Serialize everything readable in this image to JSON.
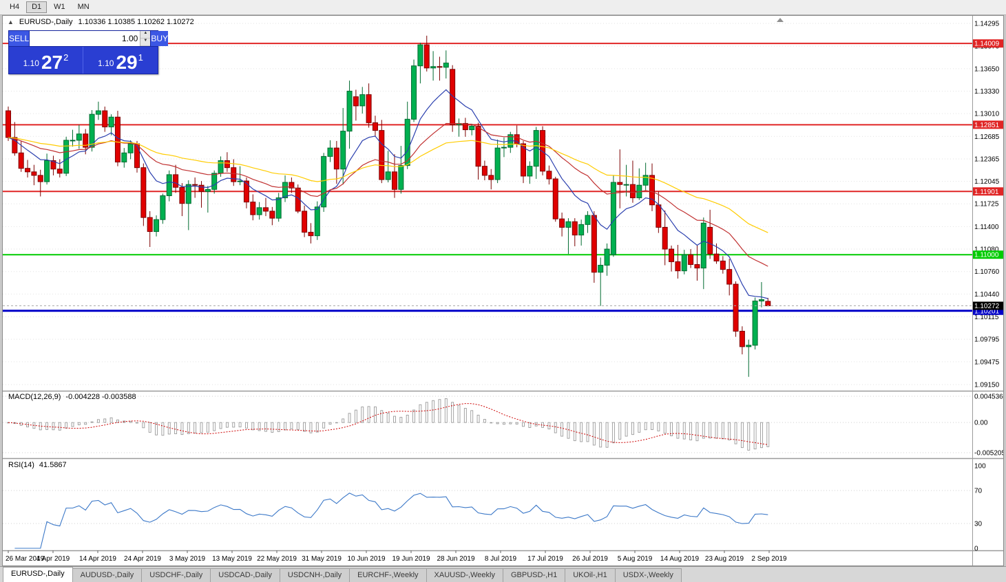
{
  "toolbar": {
    "timeframes": [
      {
        "label": "H4",
        "active": false
      },
      {
        "label": "D1",
        "active": true
      },
      {
        "label": "W1",
        "active": false
      },
      {
        "label": "MN",
        "active": false
      }
    ]
  },
  "chart_header": {
    "collapse_icon": "▲",
    "symbol": "EURUSD-,Daily",
    "ohlc_text": "1.10336 1.10385 1.10262 1.10272"
  },
  "trade_panel": {
    "sell_label": "SELL",
    "buy_label": "BUY",
    "volume": "1.00",
    "bid": {
      "small": "1.10",
      "big": "27",
      "sup": "2"
    },
    "ask": {
      "small": "1.10",
      "big": "29",
      "sup": "1"
    }
  },
  "macd_panel": {
    "label": "MACD(12,26,9)",
    "values": "-0.004228 -0.003588",
    "axis": [
      "0.004536",
      "0.00",
      "-0.005205"
    ]
  },
  "rsi_panel": {
    "label": "RSI(14)",
    "value": "41.5867",
    "axis": [
      "100",
      "70",
      "30",
      "0"
    ],
    "levels": [
      70,
      30
    ]
  },
  "colors": {
    "bull": "#00b050",
    "bull_border": "#006b30",
    "bear": "#e00000",
    "bear_border": "#7c0000",
    "grid": "#e2e2e2",
    "ma_fast": "#2a3fae",
    "ma_mid": "#c03030",
    "ma_slow": "#ffcc00",
    "macd_hist": "#9a9a9a",
    "macd_signal": "#cc0000",
    "rsi": "#3b78c8",
    "separator": "#9a9a9a",
    "bid_line": "#aaaaaa"
  },
  "chart_data": {
    "type": "candlestick",
    "symbol": "EURUSD-,Daily",
    "price_axis_ticks": [
      "1.14295",
      "1.13970",
      "1.13650",
      "1.13330",
      "1.13010",
      "1.12685",
      "1.12365",
      "1.12045",
      "1.11725",
      "1.11400",
      "1.11080",
      "1.10760",
      "1.10440",
      "1.10115",
      "1.09795",
      "1.09475",
      "1.09150"
    ],
    "price_max": 1.14295,
    "price_min": 1.0915,
    "hlines": [
      {
        "price": 1.14009,
        "label": "1.14009",
        "color": "#e02525",
        "width": 2
      },
      {
        "price": 1.12851,
        "label": "1.12851",
        "color": "#e02525",
        "width": 2
      },
      {
        "price": 1.11901,
        "label": "1.11901",
        "color": "#e02525",
        "width": 2
      },
      {
        "price": 1.11,
        "label": "1.11000",
        "color": "#00cc00",
        "width": 2
      },
      {
        "price": 1.10201,
        "label": "1.10201",
        "color": "#0000c8",
        "width": 3
      }
    ],
    "current_price": {
      "value": 1.10272,
      "label": "1.10272",
      "bg": "#000000"
    },
    "date_labels": [
      "26 Mar 2019",
      "4 Apr 2019",
      "14 Apr 2019",
      "24 Apr 2019",
      "3 May 2019",
      "13 May 2019",
      "22 May 2019",
      "31 May 2019",
      "10 Jun 2019",
      "19 Jun 2019",
      "28 Jun 2019",
      "8 Jul 2019",
      "17 Jul 2019",
      "26 Jul 2019",
      "5 Aug 2019",
      "14 Aug 2019",
      "23 Aug 2019",
      "2 Sep 2019"
    ],
    "ma": [
      {
        "type": "ema",
        "period": 10,
        "color": "#2a3fae"
      },
      {
        "type": "ema",
        "period": 25,
        "color": "#c03030"
      },
      {
        "type": "ema",
        "period": 50,
        "color": "#ffcc00"
      }
    ],
    "macd": {
      "fast": 12,
      "slow": 26,
      "signal_period": 9
    },
    "rsi": {
      "period": 14
    },
    "candles": [
      [
        1.1305,
        1.1311,
        1.1262,
        1.1267
      ],
      [
        1.1267,
        1.1289,
        1.1241,
        1.1245
      ],
      [
        1.1245,
        1.1262,
        1.1218,
        1.1223
      ],
      [
        1.1223,
        1.1235,
        1.121,
        1.1218
      ],
      [
        1.1218,
        1.1228,
        1.1199,
        1.1213
      ],
      [
        1.1213,
        1.1221,
        1.1183,
        1.1204
      ],
      [
        1.1204,
        1.1244,
        1.12,
        1.1234
      ],
      [
        1.1234,
        1.1241,
        1.1213,
        1.1222
      ],
      [
        1.1222,
        1.1236,
        1.121,
        1.1216
      ],
      [
        1.1216,
        1.1268,
        1.1212,
        1.1263
      ],
      [
        1.1263,
        1.1278,
        1.1254,
        1.1263
      ],
      [
        1.1263,
        1.1285,
        1.1251,
        1.1272
      ],
      [
        1.1272,
        1.1279,
        1.1243,
        1.1253
      ],
      [
        1.1253,
        1.1306,
        1.1247,
        1.13
      ],
      [
        1.13,
        1.1318,
        1.1292,
        1.1305
      ],
      [
        1.1305,
        1.1311,
        1.1275,
        1.1282
      ],
      [
        1.1282,
        1.13,
        1.127,
        1.1296
      ],
      [
        1.1296,
        1.1305,
        1.1226,
        1.1232
      ],
      [
        1.1232,
        1.1252,
        1.1224,
        1.1245
      ],
      [
        1.1245,
        1.1263,
        1.1236,
        1.1258
      ],
      [
        1.1258,
        1.1262,
        1.1217,
        1.1224
      ],
      [
        1.1224,
        1.123,
        1.1141,
        1.1153
      ],
      [
        1.1153,
        1.1162,
        1.1111,
        1.1133
      ],
      [
        1.1133,
        1.1156,
        1.1126,
        1.115
      ],
      [
        1.115,
        1.1187,
        1.1144,
        1.1184
      ],
      [
        1.1184,
        1.122,
        1.1176,
        1.1214
      ],
      [
        1.1214,
        1.1228,
        1.1188,
        1.1196
      ],
      [
        1.1196,
        1.1202,
        1.1155,
        1.1173
      ],
      [
        1.1173,
        1.1206,
        1.1135,
        1.12
      ],
      [
        1.12,
        1.121,
        1.1181,
        1.1199
      ],
      [
        1.1199,
        1.1205,
        1.1167,
        1.119
      ],
      [
        1.119,
        1.1198,
        1.116,
        1.1193
      ],
      [
        1.1193,
        1.122,
        1.1187,
        1.1216
      ],
      [
        1.1216,
        1.124,
        1.1211,
        1.1234
      ],
      [
        1.1234,
        1.1246,
        1.1218,
        1.1224
      ],
      [
        1.1224,
        1.1236,
        1.1198,
        1.1204
      ],
      [
        1.1204,
        1.1226,
        1.1199,
        1.1205
      ],
      [
        1.1205,
        1.121,
        1.1166,
        1.1175
      ],
      [
        1.1175,
        1.1186,
        1.1149,
        1.1157
      ],
      [
        1.1157,
        1.1175,
        1.115,
        1.1167
      ],
      [
        1.1167,
        1.1181,
        1.1155,
        1.1162
      ],
      [
        1.1162,
        1.1168,
        1.1142,
        1.1152
      ],
      [
        1.1152,
        1.1188,
        1.1147,
        1.1181
      ],
      [
        1.1181,
        1.1213,
        1.1175,
        1.1203
      ],
      [
        1.1203,
        1.121,
        1.1188,
        1.1195
      ],
      [
        1.1195,
        1.12,
        1.1159,
        1.1162
      ],
      [
        1.1162,
        1.117,
        1.1125,
        1.1132
      ],
      [
        1.1132,
        1.1145,
        1.1116,
        1.1127
      ],
      [
        1.1127,
        1.1176,
        1.1121,
        1.1168
      ],
      [
        1.1168,
        1.1245,
        1.1161,
        1.124
      ],
      [
        1.124,
        1.1263,
        1.1232,
        1.1252
      ],
      [
        1.1252,
        1.1262,
        1.1201,
        1.1222
      ],
      [
        1.1222,
        1.1309,
        1.12,
        1.1276
      ],
      [
        1.1276,
        1.1348,
        1.1251,
        1.1333
      ],
      [
        1.1325,
        1.1335,
        1.1291,
        1.1312
      ],
      [
        1.1312,
        1.1339,
        1.1301,
        1.1328
      ],
      [
        1.1328,
        1.1344,
        1.1281,
        1.1288
      ],
      [
        1.1288,
        1.1298,
        1.1268,
        1.1277
      ],
      [
        1.1277,
        1.1292,
        1.1202,
        1.1207
      ],
      [
        1.1207,
        1.1248,
        1.1203,
        1.1218
      ],
      [
        1.1218,
        1.1243,
        1.1181,
        1.1193
      ],
      [
        1.1193,
        1.1255,
        1.1187,
        1.1227
      ],
      [
        1.1227,
        1.1318,
        1.1222,
        1.1293
      ],
      [
        1.1293,
        1.1378,
        1.1289,
        1.1369
      ],
      [
        1.1369,
        1.1402,
        1.1344,
        1.1399
      ],
      [
        1.1399,
        1.1412,
        1.1361,
        1.1366
      ],
      [
        1.1366,
        1.139,
        1.1348,
        1.1368
      ],
      [
        1.1368,
        1.1382,
        1.1348,
        1.1367
      ],
      [
        1.1367,
        1.1391,
        1.1351,
        1.1373
      ],
      [
        1.1364,
        1.137,
        1.1275,
        1.1285
      ],
      [
        1.1285,
        1.1294,
        1.1268,
        1.1287
      ],
      [
        1.1287,
        1.1295,
        1.1268,
        1.1278
      ],
      [
        1.1278,
        1.1286,
        1.127,
        1.1283
      ],
      [
        1.1283,
        1.1288,
        1.1207,
        1.1226
      ],
      [
        1.1226,
        1.1234,
        1.1206,
        1.1213
      ],
      [
        1.1213,
        1.1222,
        1.1193,
        1.1207
      ],
      [
        1.1207,
        1.1264,
        1.1202,
        1.1252
      ],
      [
        1.1252,
        1.1267,
        1.1239,
        1.1253
      ],
      [
        1.1253,
        1.1275,
        1.1245,
        1.1271
      ],
      [
        1.1271,
        1.1284,
        1.1253,
        1.1258
      ],
      [
        1.1258,
        1.1262,
        1.1202,
        1.1212
      ],
      [
        1.1212,
        1.1233,
        1.1201,
        1.1226
      ],
      [
        1.1226,
        1.1282,
        1.1208,
        1.1277
      ],
      [
        1.1277,
        1.1283,
        1.1213,
        1.1219
      ],
      [
        1.1219,
        1.1227,
        1.12,
        1.1208
      ],
      [
        1.1208,
        1.1211,
        1.1147,
        1.1151
      ],
      [
        1.1151,
        1.116,
        1.1126,
        1.1139
      ],
      [
        1.1139,
        1.1152,
        1.1101,
        1.1147
      ],
      [
        1.1147,
        1.1152,
        1.1112,
        1.1128
      ],
      [
        1.1128,
        1.115,
        1.1113,
        1.1143
      ],
      [
        1.1143,
        1.1162,
        1.1131,
        1.1156
      ],
      [
        1.1156,
        1.1162,
        1.106,
        1.1075
      ],
      [
        1.1075,
        1.1096,
        1.1027,
        1.1085
      ],
      [
        1.1085,
        1.1116,
        1.107,
        1.1108
      ],
      [
        1.11,
        1.1213,
        1.1097,
        1.1203
      ],
      [
        1.1203,
        1.125,
        1.1166,
        1.12
      ],
      [
        1.12,
        1.1228,
        1.1183,
        1.12
      ],
      [
        1.12,
        1.1234,
        1.1174,
        1.1181
      ],
      [
        1.1181,
        1.1223,
        1.1178,
        1.1199
      ],
      [
        1.1199,
        1.1231,
        1.1192,
        1.1213
      ],
      [
        1.1213,
        1.123,
        1.1162,
        1.1171
      ],
      [
        1.1171,
        1.119,
        1.1131,
        1.1139
      ],
      [
        1.1139,
        1.1163,
        1.1085,
        1.1108
      ],
      [
        1.1108,
        1.1113,
        1.1076,
        1.109
      ],
      [
        1.109,
        1.1114,
        1.1066,
        1.1077
      ],
      [
        1.1077,
        1.1107,
        1.1072,
        1.11
      ],
      [
        1.11,
        1.1108,
        1.1081,
        1.1086
      ],
      [
        1.1086,
        1.1113,
        1.1063,
        1.1081
      ],
      [
        1.1081,
        1.1153,
        1.1051,
        1.1145
      ],
      [
        1.1139,
        1.1164,
        1.1094,
        1.1101
      ],
      [
        1.1101,
        1.1116,
        1.1087,
        1.1091
      ],
      [
        1.1091,
        1.1098,
        1.1073,
        1.1079
      ],
      [
        1.1079,
        1.1094,
        1.1042,
        1.1058
      ],
      [
        1.1058,
        1.1062,
        1.0983,
        1.0991
      ],
      [
        1.0991,
        1.0998,
        1.0958,
        1.0969
      ],
      [
        1.0969,
        1.0979,
        1.0926,
        1.0971
      ],
      [
        1.0971,
        1.1039,
        1.0965,
        1.1034
      ],
      [
        1.1034,
        1.1061,
        1.1025,
        1.1036
      ],
      [
        1.10336,
        1.10385,
        1.10262,
        1.10272
      ]
    ]
  },
  "tabs": [
    {
      "label": "EURUSD-,Daily",
      "active": true
    },
    {
      "label": "AUDUSD-,Daily",
      "active": false
    },
    {
      "label": "USDCHF-,Daily",
      "active": false
    },
    {
      "label": "USDCAD-,Daily",
      "active": false
    },
    {
      "label": "USDCNH-,Daily",
      "active": false
    },
    {
      "label": "EURCHF-,Weekly",
      "active": false
    },
    {
      "label": "XAUUSD-,Weekly",
      "active": false
    },
    {
      "label": "GBPUSD-,H1",
      "active": false
    },
    {
      "label": "UKOil-,H1",
      "active": false
    },
    {
      "label": "USDX-,Weekly",
      "active": false
    }
  ]
}
